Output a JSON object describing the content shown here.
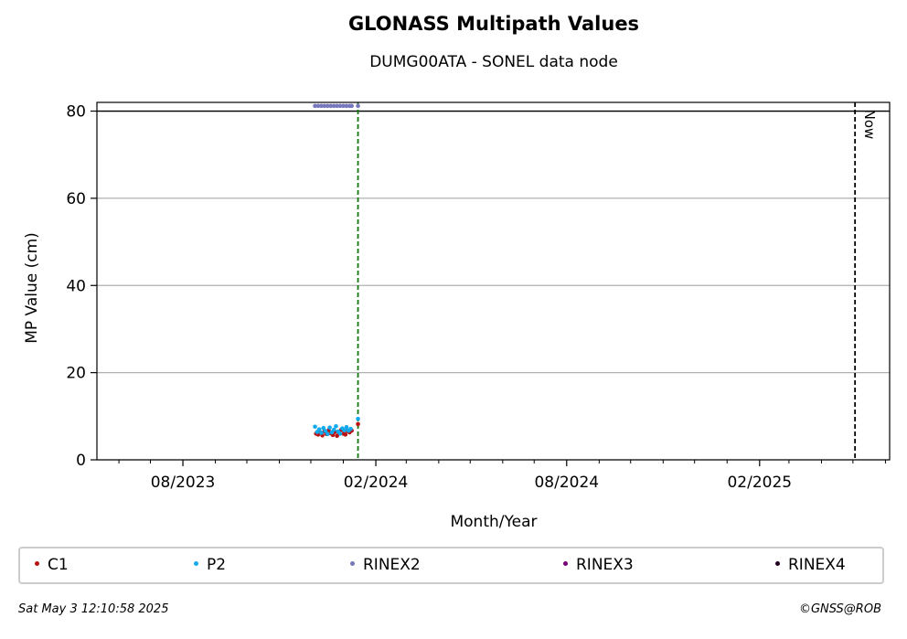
{
  "chart_data": {
    "type": "scatter",
    "title": "GLONASS Multipath Values",
    "subtitle": "DUMG00ATA - SONEL data node",
    "xlabel": "Month/Year",
    "ylabel": "MP Value (cm)",
    "ylim": [
      0,
      82
    ],
    "xlim": [
      "2023-05-11",
      "2025-06-05"
    ],
    "x_ticks": [
      "08/2023",
      "02/2024",
      "08/2024",
      "02/2025"
    ],
    "y_ticks": [
      "0",
      "20",
      "40",
      "60",
      "80"
    ],
    "grid": "horizontal",
    "reference_lines": [
      {
        "type": "horizontal",
        "y": 80,
        "style": "solid",
        "color": "#000000"
      },
      {
        "type": "vertical",
        "x": "2024-01-15",
        "style": "dashed",
        "color": "#117711"
      },
      {
        "type": "vertical",
        "x": "2025-05-03",
        "style": "dashed",
        "color": "#000000",
        "label": "Now"
      }
    ],
    "legend_position": "bottom",
    "series": [
      {
        "name": "C1",
        "color": "#bb1111",
        "points": [
          {
            "x": "2023-12-06",
            "y": 6.0
          },
          {
            "x": "2023-12-08",
            "y": 5.8
          },
          {
            "x": "2023-12-10",
            "y": 6.3
          },
          {
            "x": "2023-12-12",
            "y": 5.6
          },
          {
            "x": "2023-12-14",
            "y": 6.5
          },
          {
            "x": "2023-12-16",
            "y": 5.9
          },
          {
            "x": "2023-12-18",
            "y": 6.8
          },
          {
            "x": "2023-12-20",
            "y": 6.1
          },
          {
            "x": "2023-12-22",
            "y": 5.7
          },
          {
            "x": "2023-12-24",
            "y": 6.4
          },
          {
            "x": "2023-12-26",
            "y": 5.5
          },
          {
            "x": "2023-12-28",
            "y": 6.2
          },
          {
            "x": "2023-12-30",
            "y": 6.9
          },
          {
            "x": "2024-01-01",
            "y": 6.0
          },
          {
            "x": "2024-01-03",
            "y": 5.8
          },
          {
            "x": "2024-01-05",
            "y": 6.6
          },
          {
            "x": "2024-01-07",
            "y": 6.3
          },
          {
            "x": "2024-01-09",
            "y": 6.7
          },
          {
            "x": "2024-01-15",
            "y": 8.2
          }
        ]
      },
      {
        "name": "P2",
        "color": "#11aaee",
        "points": [
          {
            "x": "2023-12-05",
            "y": 7.6
          },
          {
            "x": "2023-12-07",
            "y": 6.4
          },
          {
            "x": "2023-12-09",
            "y": 7.0
          },
          {
            "x": "2023-12-11",
            "y": 6.2
          },
          {
            "x": "2023-12-13",
            "y": 7.3
          },
          {
            "x": "2023-12-15",
            "y": 6.6
          },
          {
            "x": "2023-12-17",
            "y": 5.9
          },
          {
            "x": "2023-12-19",
            "y": 7.4
          },
          {
            "x": "2023-12-21",
            "y": 6.3
          },
          {
            "x": "2023-12-23",
            "y": 6.9
          },
          {
            "x": "2023-12-25",
            "y": 7.7
          },
          {
            "x": "2023-12-27",
            "y": 6.5
          },
          {
            "x": "2023-12-29",
            "y": 6.0
          },
          {
            "x": "2023-12-31",
            "y": 7.2
          },
          {
            "x": "2024-01-02",
            "y": 6.8
          },
          {
            "x": "2024-01-04",
            "y": 7.5
          },
          {
            "x": "2024-01-06",
            "y": 6.7
          },
          {
            "x": "2024-01-08",
            "y": 7.1
          },
          {
            "x": "2024-01-15",
            "y": 9.4
          }
        ]
      },
      {
        "name": "RINEX2",
        "color": "#7777bb",
        "points": [
          {
            "x": "2023-12-05",
            "y": 81.2
          },
          {
            "x": "2023-12-08",
            "y": 81.2
          },
          {
            "x": "2023-12-11",
            "y": 81.2
          },
          {
            "x": "2023-12-14",
            "y": 81.2
          },
          {
            "x": "2023-12-17",
            "y": 81.2
          },
          {
            "x": "2023-12-20",
            "y": 81.2
          },
          {
            "x": "2023-12-23",
            "y": 81.2
          },
          {
            "x": "2023-12-26",
            "y": 81.2
          },
          {
            "x": "2023-12-29",
            "y": 81.2
          },
          {
            "x": "2024-01-01",
            "y": 81.2
          },
          {
            "x": "2024-01-04",
            "y": 81.2
          },
          {
            "x": "2024-01-07",
            "y": 81.2
          },
          {
            "x": "2024-01-09",
            "y": 81.2
          },
          {
            "x": "2024-01-15",
            "y": 81.2
          }
        ]
      },
      {
        "name": "RINEX3",
        "color": "#770077",
        "points": []
      },
      {
        "name": "RINEX4",
        "color": "#220022",
        "points": []
      }
    ]
  },
  "footer": {
    "timestamp": "Sat May  3 12:10:58 2025",
    "credit": "©GNSS@ROB"
  }
}
